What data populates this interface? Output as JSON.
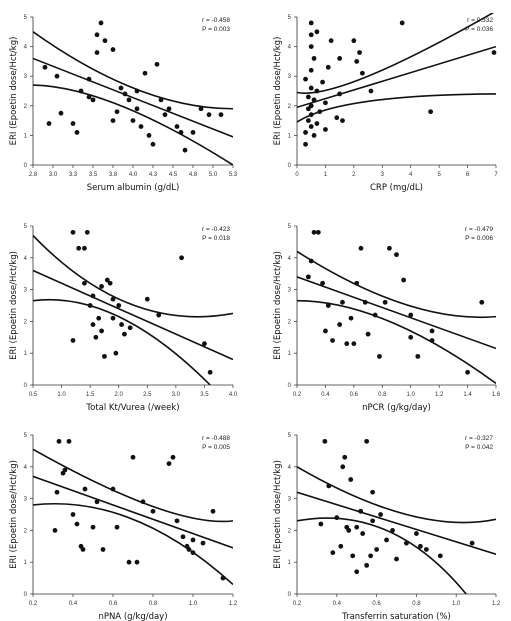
{
  "chart_data": [
    {
      "type": "scatter",
      "xlabel": "Serum albumin (g/dL)",
      "ylabel": "ERI (Epoetin dose/Hct/kg)",
      "xlim": [
        2.8,
        5.3
      ],
      "ylim": [
        0,
        5
      ],
      "xticks": [
        "2.8",
        "3.0",
        "3.3",
        "3.5",
        "3.8",
        "4.0",
        "4.3",
        "4.5",
        "4.8",
        "5.0",
        "5.3"
      ],
      "yticks": [
        "0",
        "1",
        "2",
        "3",
        "4",
        "5"
      ],
      "r_text": "r = -0.458",
      "p_text": "P = 0.003",
      "points": [
        [
          2.95,
          3.3
        ],
        [
          3.1,
          3.0
        ],
        [
          3.15,
          1.75
        ],
        [
          3.3,
          1.4
        ],
        [
          3.35,
          1.1
        ],
        [
          3.4,
          2.5
        ],
        [
          3.5,
          2.3
        ],
        [
          3.5,
          2.9
        ],
        [
          3.55,
          2.2
        ],
        [
          3.6,
          3.8
        ],
        [
          3.65,
          4.8
        ],
        [
          3.7,
          4.2
        ],
        [
          3.8,
          3.9
        ],
        [
          3.8,
          1.5
        ],
        [
          3.85,
          1.8
        ],
        [
          3.9,
          2.6
        ],
        [
          3.95,
          2.4
        ],
        [
          4.0,
          2.2
        ],
        [
          4.05,
          1.5
        ],
        [
          4.1,
          1.9
        ],
        [
          4.15,
          1.3
        ],
        [
          4.2,
          3.1
        ],
        [
          4.25,
          1.0
        ],
        [
          4.3,
          0.7
        ],
        [
          4.35,
          3.4
        ],
        [
          4.4,
          2.2
        ],
        [
          4.45,
          1.7
        ],
        [
          4.5,
          1.9
        ],
        [
          4.6,
          1.3
        ],
        [
          4.65,
          1.1
        ],
        [
          4.7,
          0.5
        ],
        [
          4.8,
          1.1
        ],
        [
          4.9,
          1.9
        ],
        [
          5.0,
          1.7
        ],
        [
          5.15,
          1.7
        ],
        [
          3.0,
          1.4
        ],
        [
          3.6,
          4.4
        ],
        [
          4.1,
          2.5
        ]
      ],
      "fit": {
        "x1": 2.8,
        "y1": 3.6,
        "x2": 5.3,
        "y2": 0.95
      },
      "ci_upper": {
        "x1": 2.8,
        "y1": 4.5,
        "xm": 4.1,
        "ym": 2.55,
        "x2": 5.3,
        "y2": 1.9
      },
      "ci_lower": {
        "x1": 2.8,
        "y1": 2.7,
        "xm": 3.9,
        "ym": 2.0,
        "x2": 5.3,
        "y2": 0.0
      }
    },
    {
      "type": "scatter",
      "xlabel": "CRP (mg/dL)",
      "ylabel": "ERI (Epoetin dose/Hct/kg)",
      "xlim": [
        0,
        7
      ],
      "ylim": [
        0,
        5
      ],
      "xticks": [
        "0",
        "1",
        "2",
        "3",
        "4",
        "5",
        "6",
        "7"
      ],
      "yticks": [
        "0",
        "1",
        "2",
        "3",
        "4",
        "5"
      ],
      "r_text": "r = 0.332",
      "p_text": "P = 0.036",
      "points": [
        [
          0.3,
          0.7
        ],
        [
          0.3,
          1.1
        ],
        [
          0.4,
          1.5
        ],
        [
          0.4,
          1.9
        ],
        [
          0.4,
          2.3
        ],
        [
          0.5,
          1.3
        ],
        [
          0.5,
          1.7
        ],
        [
          0.5,
          2.0
        ],
        [
          0.5,
          2.6
        ],
        [
          0.5,
          3.2
        ],
        [
          0.5,
          4.0
        ],
        [
          0.5,
          4.4
        ],
        [
          0.5,
          4.8
        ],
        [
          0.6,
          1.0
        ],
        [
          0.6,
          2.2
        ],
        [
          0.6,
          3.6
        ],
        [
          0.7,
          1.4
        ],
        [
          0.7,
          2.5
        ],
        [
          0.8,
          1.8
        ],
        [
          0.9,
          2.8
        ],
        [
          1.0,
          2.1
        ],
        [
          1.1,
          3.3
        ],
        [
          1.2,
          4.2
        ],
        [
          1.4,
          1.6
        ],
        [
          1.5,
          2.4
        ],
        [
          1.5,
          3.6
        ],
        [
          1.6,
          1.5
        ],
        [
          2.0,
          4.2
        ],
        [
          2.1,
          3.5
        ],
        [
          2.2,
          3.8
        ],
        [
          2.3,
          3.1
        ],
        [
          2.6,
          2.5
        ],
        [
          3.7,
          4.8
        ],
        [
          4.7,
          1.8
        ],
        [
          7.0,
          3.8
        ],
        [
          0.3,
          2.9
        ],
        [
          0.7,
          4.5
        ],
        [
          1.0,
          1.2
        ]
      ],
      "fit": {
        "x1": 0,
        "y1": 1.95,
        "x2": 7,
        "y2": 4.0
      },
      "ci_upper": {
        "x1": 0,
        "y1": 2.45,
        "xm": 2.5,
        "ym": 3.0,
        "x2": 7,
        "y2": 5.2
      },
      "ci_lower": {
        "x1": 0,
        "y1": 1.45,
        "xm": 2.5,
        "ym": 2.15,
        "x2": 7,
        "y2": 2.4
      }
    },
    {
      "type": "scatter",
      "xlabel": "Total Kt/Vurea (/week)",
      "ylabel": "ERI (Epoetin dose/Hct/kg)",
      "xlim": [
        0.5,
        4.0
      ],
      "ylim": [
        0,
        5
      ],
      "xticks": [
        "0.5",
        "1.0",
        "1.5",
        "2.0",
        "2.5",
        "3.0",
        "3.5",
        "4.0"
      ],
      "yticks": [
        "0",
        "1",
        "2",
        "3",
        "4",
        "5"
      ],
      "r_text": "r = -0.423",
      "p_text": "P = 0.018",
      "points": [
        [
          1.2,
          1.4
        ],
        [
          1.2,
          4.8
        ],
        [
          1.3,
          4.3
        ],
        [
          1.4,
          4.3
        ],
        [
          1.4,
          3.2
        ],
        [
          1.5,
          2.5
        ],
        [
          1.55,
          1.9
        ],
        [
          1.6,
          1.5
        ],
        [
          1.65,
          2.1
        ],
        [
          1.7,
          1.7
        ],
        [
          1.7,
          3.1
        ],
        [
          1.75,
          0.9
        ],
        [
          1.8,
          3.3
        ],
        [
          1.85,
          3.2
        ],
        [
          1.9,
          2.7
        ],
        [
          1.9,
          2.1
        ],
        [
          1.95,
          1.0
        ],
        [
          2.0,
          2.5
        ],
        [
          2.1,
          1.6
        ],
        [
          2.2,
          1.8
        ],
        [
          2.5,
          2.7
        ],
        [
          2.7,
          2.2
        ],
        [
          3.1,
          4.0
        ],
        [
          3.5,
          1.3
        ],
        [
          3.6,
          0.4
        ],
        [
          1.45,
          4.8
        ],
        [
          1.55,
          2.8
        ],
        [
          2.05,
          1.9
        ]
      ],
      "fit": {
        "x1": 0.5,
        "y1": 3.6,
        "x2": 4.0,
        "y2": 0.8
      },
      "ci_upper": {
        "x1": 0.5,
        "y1": 4.7,
        "xm": 2.2,
        "ym": 2.55,
        "x2": 4.0,
        "y2": 2.25
      },
      "ci_lower": {
        "x1": 0.5,
        "y1": 2.65,
        "xm": 2.0,
        "ym": 2.15,
        "x2": 3.6,
        "y2": 0.0
      }
    },
    {
      "type": "scatter",
      "xlabel": "nPCR (g/kg/day)",
      "ylabel": "ERI (Epoetin dose/Hct/kg)",
      "xlim": [
        0.2,
        1.6
      ],
      "ylim": [
        0,
        5
      ],
      "xticks": [
        "0.2",
        "0.4",
        "0.6",
        "0.8",
        "1.0",
        "1.2",
        "1.4",
        "1.6"
      ],
      "yticks": [
        "0",
        "1",
        "2",
        "3",
        "4",
        "5"
      ],
      "r_text": "r = -0.479",
      "p_text": "P = 0.006",
      "points": [
        [
          0.3,
          3.9
        ],
        [
          0.32,
          4.8
        ],
        [
          0.35,
          4.8
        ],
        [
          0.38,
          3.2
        ],
        [
          0.4,
          1.7
        ],
        [
          0.42,
          2.5
        ],
        [
          0.45,
          1.4
        ],
        [
          0.5,
          1.9
        ],
        [
          0.52,
          2.6
        ],
        [
          0.55,
          1.3
        ],
        [
          0.58,
          2.1
        ],
        [
          0.62,
          3.2
        ],
        [
          0.65,
          4.3
        ],
        [
          0.68,
          2.6
        ],
        [
          0.7,
          1.6
        ],
        [
          0.75,
          2.2
        ],
        [
          0.78,
          0.9
        ],
        [
          0.82,
          2.6
        ],
        [
          0.85,
          4.3
        ],
        [
          0.9,
          4.1
        ],
        [
          0.95,
          3.3
        ],
        [
          1.0,
          2.2
        ],
        [
          1.0,
          1.5
        ],
        [
          1.05,
          0.9
        ],
        [
          1.15,
          1.4
        ],
        [
          1.15,
          1.7
        ],
        [
          1.4,
          0.4
        ],
        [
          1.5,
          2.6
        ],
        [
          0.28,
          3.4
        ],
        [
          0.6,
          1.3
        ]
      ],
      "fit": {
        "x1": 0.2,
        "y1": 3.4,
        "x2": 1.6,
        "y2": 1.15
      },
      "ci_upper": {
        "x1": 0.2,
        "y1": 4.2,
        "xm": 0.95,
        "ym": 2.55,
        "x2": 1.6,
        "y2": 2.15
      },
      "ci_lower": {
        "x1": 0.2,
        "y1": 2.65,
        "xm": 0.85,
        "ym": 2.0,
        "x2": 1.6,
        "y2": 0.05
      }
    },
    {
      "type": "scatter",
      "xlabel": "nPNA (g/kg/day)",
      "ylabel": "ERI (Epoetin dose/Hct/kg)",
      "xlim": [
        0.2,
        1.2
      ],
      "ylim": [
        0,
        5
      ],
      "xticks": [
        "0.2",
        "0.4",
        "0.6",
        "0.8",
        "1.0",
        "1.2"
      ],
      "yticks": [
        "0",
        "1",
        "2",
        "3",
        "4",
        "5"
      ],
      "r_text": "r = -0.488",
      "p_text": "P = 0.005",
      "points": [
        [
          0.31,
          2.0
        ],
        [
          0.32,
          3.2
        ],
        [
          0.33,
          4.8
        ],
        [
          0.35,
          3.8
        ],
        [
          0.36,
          3.9
        ],
        [
          0.38,
          4.8
        ],
        [
          0.4,
          2.5
        ],
        [
          0.42,
          2.2
        ],
        [
          0.44,
          1.5
        ],
        [
          0.46,
          3.3
        ],
        [
          0.5,
          2.1
        ],
        [
          0.52,
          2.9
        ],
        [
          0.55,
          1.4
        ],
        [
          0.6,
          3.3
        ],
        [
          0.62,
          2.1
        ],
        [
          0.68,
          1.0
        ],
        [
          0.7,
          4.3
        ],
        [
          0.72,
          1.0
        ],
        [
          0.75,
          2.9
        ],
        [
          0.8,
          2.6
        ],
        [
          0.88,
          4.1
        ],
        [
          0.9,
          4.3
        ],
        [
          0.92,
          2.3
        ],
        [
          0.95,
          1.8
        ],
        [
          0.97,
          1.5
        ],
        [
          1.0,
          1.7
        ],
        [
          1.0,
          1.3
        ],
        [
          1.05,
          1.6
        ],
        [
          1.1,
          2.6
        ],
        [
          1.15,
          0.5
        ],
        [
          0.98,
          1.4
        ],
        [
          0.45,
          1.4
        ]
      ],
      "fit": {
        "x1": 0.2,
        "y1": 3.7,
        "x2": 1.2,
        "y2": 1.45
      },
      "ci_upper": {
        "x1": 0.2,
        "y1": 4.55,
        "xm": 0.8,
        "ym": 2.75,
        "x2": 1.2,
        "y2": 2.3
      },
      "ci_lower": {
        "x1": 0.2,
        "y1": 2.8,
        "xm": 0.7,
        "ym": 2.35,
        "x2": 1.2,
        "y2": 0.3
      }
    },
    {
      "type": "scatter",
      "xlabel": "Transferrin saturation (%)",
      "ylabel": "ERI (Epoetin dose/Hct/kg)",
      "xlim": [
        0.2,
        1.2
      ],
      "ylim": [
        0,
        5
      ],
      "xticks": [
        "0.2",
        "0.4",
        "0.6",
        "0.8",
        "1.0",
        "1.2"
      ],
      "yticks": [
        "0",
        "1",
        "2",
        "3",
        "4",
        "5"
      ],
      "r_text": "r = -0.327",
      "p_text": "P = 0.042",
      "points": [
        [
          0.32,
          2.2
        ],
        [
          0.34,
          4.8
        ],
        [
          0.36,
          3.4
        ],
        [
          0.38,
          1.3
        ],
        [
          0.4,
          2.4
        ],
        [
          0.42,
          1.5
        ],
        [
          0.43,
          4.0
        ],
        [
          0.44,
          4.3
        ],
        [
          0.45,
          2.1
        ],
        [
          0.47,
          3.6
        ],
        [
          0.48,
          1.2
        ],
        [
          0.5,
          0.7
        ],
        [
          0.5,
          2.1
        ],
        [
          0.52,
          2.6
        ],
        [
          0.53,
          1.9
        ],
        [
          0.55,
          0.9
        ],
        [
          0.55,
          4.8
        ],
        [
          0.57,
          1.2
        ],
        [
          0.58,
          2.3
        ],
        [
          0.6,
          1.4
        ],
        [
          0.62,
          2.5
        ],
        [
          0.65,
          1.7
        ],
        [
          0.68,
          2.0
        ],
        [
          0.7,
          1.1
        ],
        [
          0.75,
          1.6
        ],
        [
          0.8,
          1.9
        ],
        [
          0.82,
          1.5
        ],
        [
          0.85,
          1.4
        ],
        [
          0.92,
          1.2
        ],
        [
          1.08,
          1.6
        ],
        [
          0.58,
          3.2
        ],
        [
          0.46,
          2.0
        ]
      ],
      "fit": {
        "x1": 0.2,
        "y1": 3.2,
        "x2": 1.2,
        "y2": 1.25
      },
      "ci_upper": {
        "x1": 0.2,
        "y1": 4.0,
        "xm": 0.75,
        "ym": 2.5,
        "x2": 1.2,
        "y2": 2.35
      },
      "ci_lower": {
        "x1": 0.2,
        "y1": 2.3,
        "xm": 0.65,
        "ym": 2.0,
        "x2": 1.05,
        "y2": 0.0
      }
    }
  ]
}
